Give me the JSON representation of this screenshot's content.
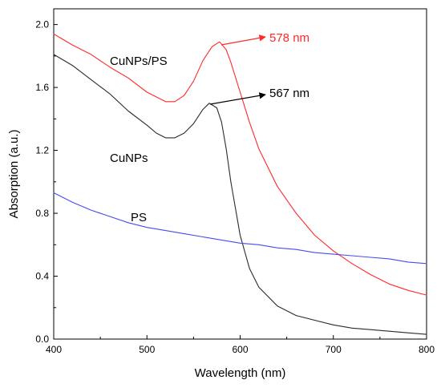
{
  "chart_data": {
    "type": "line",
    "xlabel": "Wavelength (nm)",
    "ylabel": "Absorption (a.u.)",
    "xlim": [
      400,
      800
    ],
    "ylim": [
      0.0,
      2.1
    ],
    "xticks": [
      400,
      500,
      600,
      700,
      800
    ],
    "xtick_labels": [
      "400",
      "500",
      "600",
      "700",
      "800"
    ],
    "yticks": [
      0.0,
      0.4,
      0.8,
      1.2,
      1.6,
      2.0
    ],
    "ytick_labels": [
      "0.0",
      "0.4",
      "0.8",
      "1.2",
      "1.6",
      "2.0"
    ],
    "grid": false,
    "series": [
      {
        "name": "CuNPs/PS",
        "color": "#ff2a2a",
        "x": [
          400,
          420,
          440,
          460,
          480,
          500,
          510,
          520,
          530,
          540,
          550,
          560,
          570,
          578,
          585,
          590,
          600,
          610,
          620,
          640,
          660,
          680,
          700,
          720,
          740,
          760,
          780,
          800
        ],
        "y": [
          1.94,
          1.87,
          1.81,
          1.73,
          1.66,
          1.57,
          1.54,
          1.51,
          1.51,
          1.55,
          1.64,
          1.77,
          1.86,
          1.89,
          1.84,
          1.76,
          1.57,
          1.38,
          1.21,
          0.97,
          0.8,
          0.66,
          0.56,
          0.48,
          0.41,
          0.35,
          0.31,
          0.28
        ]
      },
      {
        "name": "CuNPs",
        "color": "#2b2b2b",
        "x": [
          400,
          420,
          440,
          460,
          480,
          500,
          510,
          520,
          530,
          540,
          550,
          560,
          567,
          575,
          580,
          585,
          590,
          600,
          610,
          620,
          640,
          660,
          680,
          700,
          720,
          740,
          760,
          780,
          800
        ],
        "y": [
          1.81,
          1.74,
          1.65,
          1.56,
          1.45,
          1.36,
          1.31,
          1.28,
          1.28,
          1.31,
          1.37,
          1.46,
          1.5,
          1.47,
          1.38,
          1.21,
          1.0,
          0.66,
          0.45,
          0.33,
          0.21,
          0.15,
          0.12,
          0.09,
          0.07,
          0.06,
          0.05,
          0.04,
          0.03
        ]
      },
      {
        "name": "PS",
        "color": "#4a4af0",
        "x": [
          400,
          420,
          440,
          460,
          480,
          500,
          520,
          540,
          560,
          580,
          600,
          620,
          640,
          660,
          680,
          700,
          720,
          740,
          760,
          780,
          800
        ],
        "y": [
          0.93,
          0.87,
          0.82,
          0.78,
          0.74,
          0.71,
          0.69,
          0.67,
          0.65,
          0.63,
          0.61,
          0.6,
          0.58,
          0.57,
          0.55,
          0.54,
          0.53,
          0.52,
          0.51,
          0.49,
          0.48
        ]
      }
    ],
    "annotations": [
      {
        "text": "578 nm",
        "color": "#ff2a2a",
        "x": 578,
        "y": 1.89
      },
      {
        "text": "567 nm",
        "color": "#000000",
        "x": 567,
        "y": 1.5
      }
    ]
  }
}
